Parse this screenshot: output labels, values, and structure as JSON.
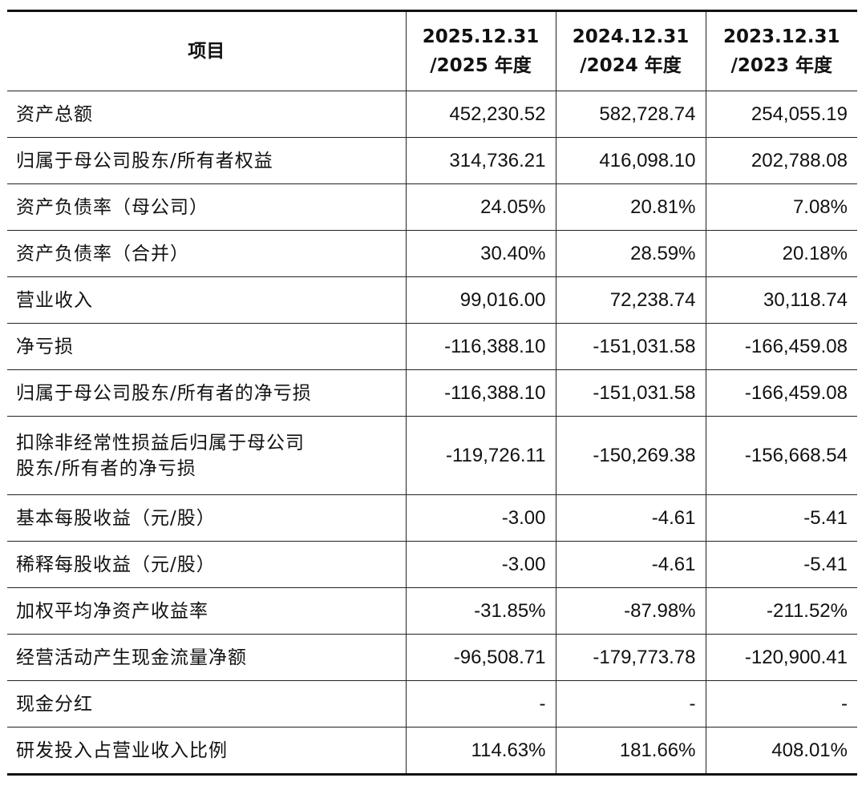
{
  "table": {
    "header": {
      "item": "项目",
      "columns": [
        {
          "line1": "2025.12.31",
          "line2": "/2025 年度"
        },
        {
          "line1": "2024.12.31",
          "line2": "/2024 年度"
        },
        {
          "line1": "2023.12.31",
          "line2": "/2023 年度"
        }
      ]
    },
    "rows": [
      {
        "label": "资产总额",
        "values": [
          "452,230.52",
          "582,728.74",
          "254,055.19"
        ]
      },
      {
        "label": "归属于母公司股东/所有者权益",
        "values": [
          "314,736.21",
          "416,098.10",
          "202,788.08"
        ]
      },
      {
        "label": "资产负债率（母公司）",
        "values": [
          "24.05%",
          "20.81%",
          "7.08%"
        ]
      },
      {
        "label": "资产负债率（合并）",
        "values": [
          "30.40%",
          "28.59%",
          "20.18%"
        ]
      },
      {
        "label": "营业收入",
        "values": [
          "99,016.00",
          "72,238.74",
          "30,118.74"
        ]
      },
      {
        "label": "净亏损",
        "values": [
          "-116,388.10",
          "-151,031.58",
          "-166,459.08"
        ]
      },
      {
        "label": "归属于母公司股东/所有者的净亏损",
        "values": [
          "-116,388.10",
          "-151,031.58",
          "-166,459.08"
        ]
      },
      {
        "label_line1": "扣除非经常性损益后归属于母公司",
        "label_line2": "股东/所有者的净亏损",
        "values": [
          "-119,726.11",
          "-150,269.38",
          "-156,668.54"
        ]
      },
      {
        "label": "基本每股收益（元/股）",
        "values": [
          "-3.00",
          "-4.61",
          "-5.41"
        ]
      },
      {
        "label": "稀释每股收益（元/股）",
        "values": [
          "-3.00",
          "-4.61",
          "-5.41"
        ]
      },
      {
        "label": "加权平均净资产收益率",
        "values": [
          "-31.85%",
          "-87.98%",
          "-211.52%"
        ]
      },
      {
        "label": "经营活动产生现金流量净额",
        "values": [
          "-96,508.71",
          "-179,773.78",
          "-120,900.41"
        ]
      },
      {
        "label": "现金分红",
        "values": [
          "-",
          "-",
          "-"
        ]
      },
      {
        "label": "研发投入占营业收入比例",
        "values": [
          "114.63%",
          "181.66%",
          "408.01%"
        ]
      }
    ]
  }
}
